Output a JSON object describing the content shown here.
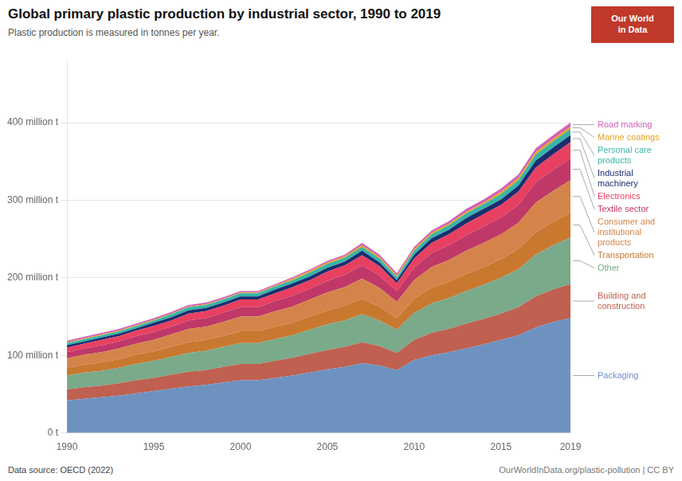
{
  "chart_data": {
    "type": "area",
    "stacked": true,
    "title": "Global primary plastic production by industrial sector, 1990 to 2019",
    "subtitle": "Plastic production is measured in tonnes per year.",
    "annotations": [
      "Data source: OECD (2022)",
      "OurWorldInData.org/plastic-pollution | CC BY",
      "Our World\nin Data"
    ],
    "x": [
      1990,
      1991,
      1992,
      1993,
      1994,
      1995,
      1996,
      1997,
      1998,
      1999,
      2000,
      2001,
      2002,
      2003,
      2004,
      2005,
      2006,
      2007,
      2008,
      2009,
      2010,
      2011,
      2012,
      2013,
      2014,
      2015,
      2016,
      2017,
      2018,
      2019
    ],
    "series": [
      {
        "name": "Packaging",
        "color": "#6e92c0",
        "values": [
          42,
          44,
          46,
          48,
          51,
          54,
          57,
          60,
          62,
          65,
          68,
          68,
          71,
          74,
          78,
          82,
          85,
          90,
          87,
          81,
          94,
          100,
          104,
          109,
          114,
          120,
          126,
          136,
          143,
          148
        ]
      },
      {
        "name": "Building and\nconstruction",
        "color": "#bf6050",
        "values": [
          14,
          15,
          15,
          16,
          17,
          17,
          18,
          19,
          19,
          20,
          21,
          21,
          22,
          23,
          24,
          25,
          26,
          27,
          25,
          22,
          26,
          29,
          30,
          32,
          33,
          34,
          36,
          40,
          42,
          44
        ]
      },
      {
        "name": "Other",
        "color": "#7aaa8a",
        "values": [
          18,
          19,
          19,
          20,
          21,
          22,
          23,
          24,
          25,
          26,
          27,
          27,
          28,
          29,
          31,
          33,
          34,
          36,
          33,
          30,
          35,
          38,
          40,
          42,
          44,
          46,
          49,
          54,
          57,
          60
        ]
      },
      {
        "name": "Transportation",
        "color": "#c97830",
        "values": [
          10,
          10,
          11,
          11,
          12,
          12,
          13,
          14,
          14,
          14,
          15,
          15,
          16,
          16,
          17,
          18,
          19,
          20,
          18,
          15,
          18,
          20,
          21,
          22,
          23,
          24,
          26,
          29,
          30,
          32
        ]
      },
      {
        "name": "Consumer and\ninstitutional\nproducts",
        "color": "#d4844a",
        "values": [
          12,
          13,
          13,
          14,
          14,
          15,
          16,
          17,
          17,
          18,
          19,
          19,
          20,
          21,
          22,
          23,
          24,
          26,
          24,
          21,
          24,
          27,
          28,
          30,
          31,
          32,
          34,
          38,
          40,
          42
        ]
      },
      {
        "name": "Textile sector",
        "color": "#c03868",
        "values": [
          8,
          8,
          9,
          9,
          10,
          10,
          10,
          11,
          11,
          12,
          12,
          12,
          13,
          14,
          14,
          15,
          16,
          17,
          16,
          14,
          16,
          18,
          19,
          20,
          21,
          22,
          23,
          26,
          27,
          28
        ]
      },
      {
        "name": "Electronics",
        "color": "#e84060",
        "values": [
          6,
          6,
          7,
          7,
          7,
          8,
          8,
          9,
          9,
          9,
          10,
          10,
          10,
          11,
          11,
          12,
          12,
          13,
          12,
          10,
          12,
          13,
          14,
          15,
          16,
          16,
          17,
          19,
          20,
          21
        ]
      },
      {
        "name": "Industrial\nmachinery",
        "color": "#1a2e70",
        "values": [
          3,
          3,
          3,
          3,
          3,
          4,
          4,
          4,
          4,
          4,
          4,
          4,
          5,
          5,
          5,
          5,
          5,
          6,
          5,
          4,
          5,
          6,
          6,
          7,
          7,
          7,
          8,
          9,
          9,
          9
        ]
      },
      {
        "name": "Personal care\nproducts",
        "color": "#38b5a8",
        "values": [
          3,
          3,
          3,
          3,
          3,
          3,
          4,
          4,
          4,
          4,
          4,
          4,
          4,
          4,
          5,
          5,
          5,
          5,
          5,
          4,
          5,
          5,
          6,
          6,
          6,
          7,
          7,
          8,
          8,
          8
        ]
      },
      {
        "name": "Marine coatings",
        "color": "#e8a020",
        "values": [
          1,
          1,
          1,
          1,
          1,
          1,
          1,
          1,
          1,
          1,
          1,
          1,
          1,
          2,
          2,
          2,
          2,
          2,
          2,
          2,
          2,
          2,
          2,
          2,
          2,
          3,
          3,
          3,
          3,
          3
        ]
      },
      {
        "name": "Road marking",
        "color": "#d060b8",
        "values": [
          2,
          2,
          2,
          2,
          2,
          2,
          2,
          2,
          2,
          2,
          2,
          2,
          2,
          2,
          2,
          2,
          2,
          3,
          3,
          3,
          3,
          3,
          3,
          4,
          4,
          4,
          4,
          5,
          5,
          5
        ]
      }
    ],
    "xlim": [
      1990,
      2019
    ],
    "xticks": [
      1990,
      1995,
      2000,
      2005,
      2010,
      2015,
      2019
    ],
    "ylim": [
      0,
      480
    ],
    "yticks": [
      {
        "value": 0,
        "label": "0 t"
      },
      {
        "value": 100,
        "label": "100 million t"
      },
      {
        "value": 200,
        "label": "200 million t"
      },
      {
        "value": 300,
        "label": "300 million t"
      },
      {
        "value": 400,
        "label": "400 million t"
      }
    ],
    "grid": "y"
  }
}
